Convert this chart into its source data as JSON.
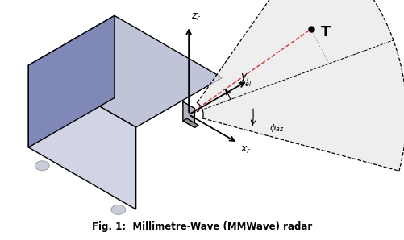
{
  "bg_color": "#ffffff",
  "box_top_color": "#c0c4d8",
  "box_front_color": "#8088b8",
  "box_right_color": "#d0d4e4",
  "box_edge_color": "#000000",
  "radar_color": "#a8acbc",
  "wheel_color": "#c8ccd8",
  "fov_fill_color": "#e8e8e8",
  "fov_edge_color": "#000000",
  "red_line_color": "#cc3333",
  "axis_color": "#000000",
  "figsize": [
    5.02,
    2.98
  ],
  "dpi": 100,
  "caption": "Fig. 1:  Millimetre-Wave (MMWave) radar"
}
